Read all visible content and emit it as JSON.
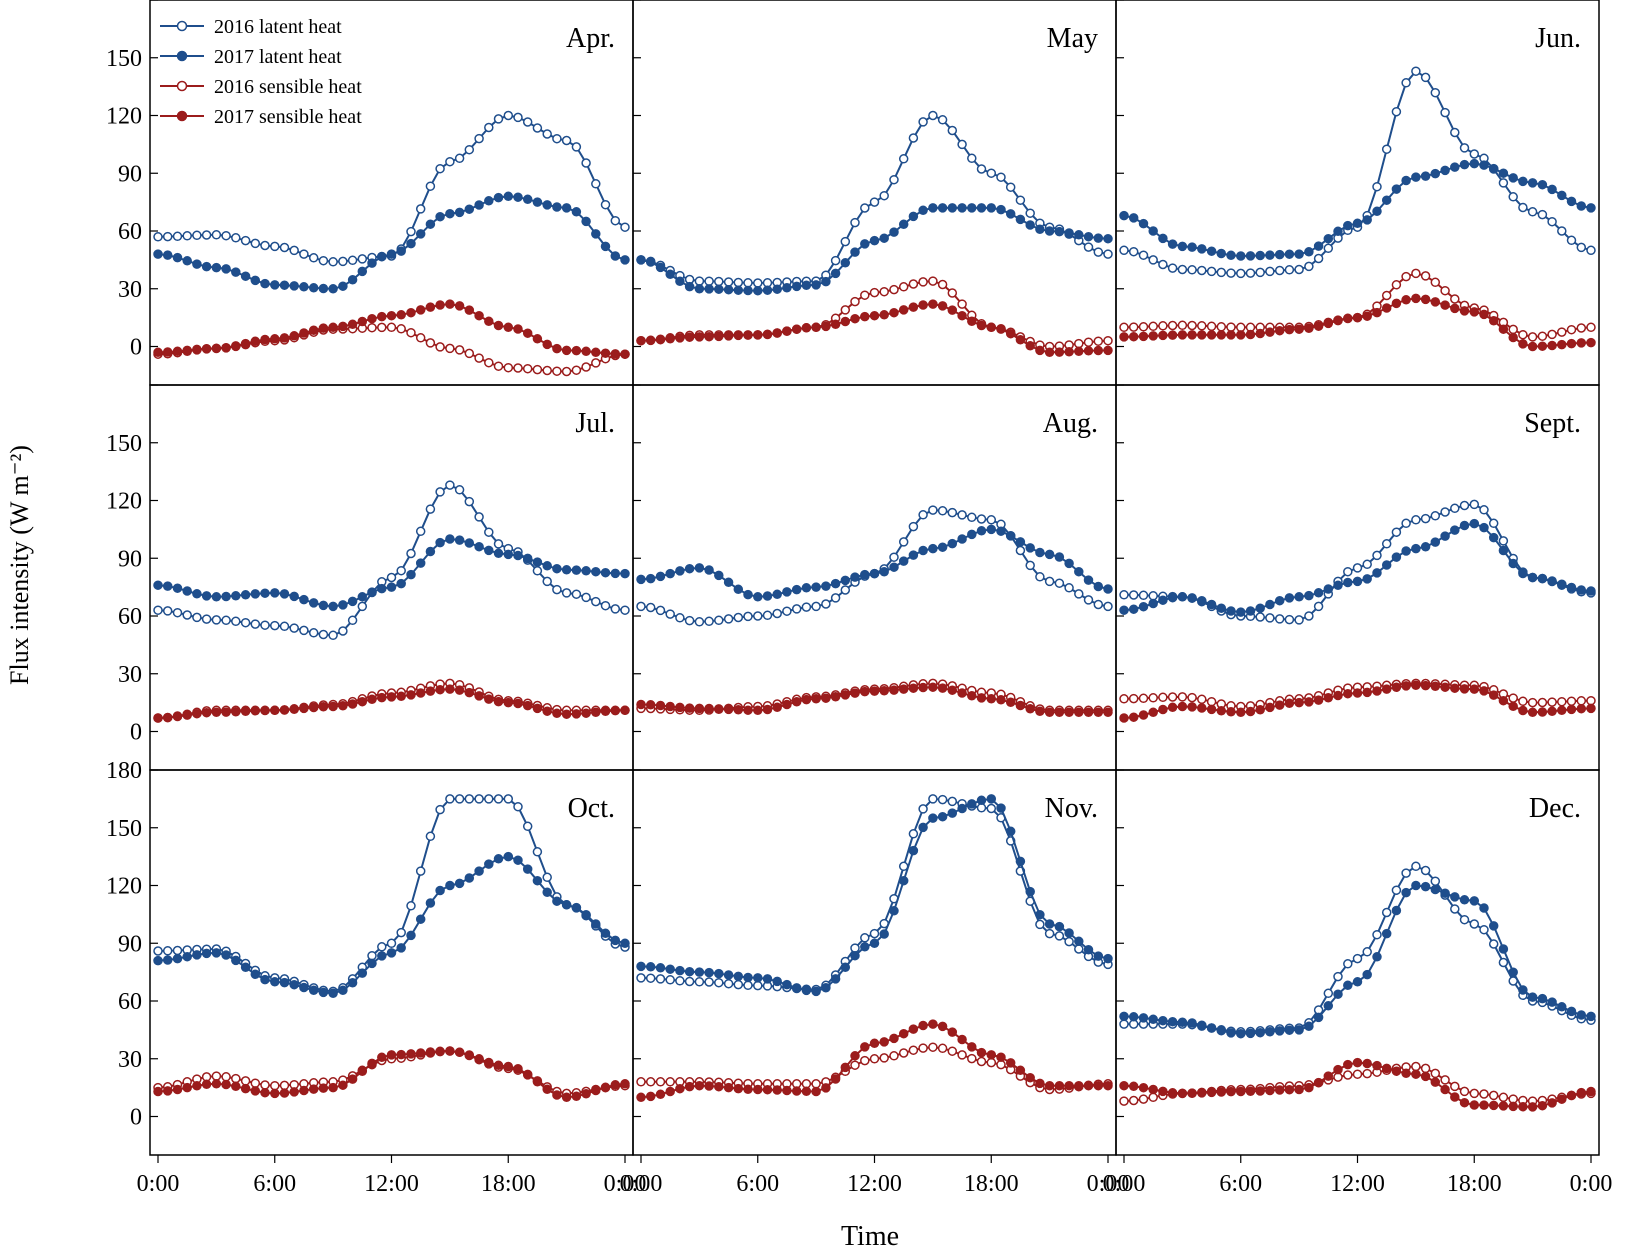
{
  "figure": {
    "ylabel": "Flux intensity (W m⁻²)",
    "xlabel": "Time",
    "x_tick_labels": [
      "0:00",
      "6:00",
      "12:00",
      "18:00",
      "0:00"
    ],
    "colors": {
      "latent": "#1f4e8c",
      "sensible": "#9b1c1c",
      "axis": "#000000"
    }
  },
  "legend": {
    "items": [
      {
        "label": "2016 latent heat",
        "kind": "latent",
        "year": "2016",
        "marker": "open"
      },
      {
        "label": "2017 latent heat",
        "kind": "latent",
        "year": "2017",
        "marker": "filled"
      },
      {
        "label": "2016 sensible heat",
        "kind": "sensible",
        "year": "2016",
        "marker": "open"
      },
      {
        "label": "2017 sensible heat",
        "kind": "sensible",
        "year": "2017",
        "marker": "filled"
      }
    ]
  },
  "chart_data": [
    {
      "type": "line",
      "month": "Apr.",
      "x_unit": "hours",
      "x": [
        0,
        3,
        6,
        9,
        12,
        15,
        18,
        21,
        24
      ],
      "xlim": [
        0,
        24
      ],
      "ylim": [
        -20,
        180
      ],
      "ytick_labels": [
        "0",
        "30",
        "60",
        "90",
        "120",
        "150"
      ],
      "series": [
        {
          "name": "2016 latent heat",
          "values": [
            57,
            58,
            52,
            44,
            47,
            96,
            120,
            107,
            62
          ]
        },
        {
          "name": "2017 latent heat",
          "values": [
            48,
            41,
            32,
            30,
            48,
            69,
            78,
            72,
            45
          ]
        },
        {
          "name": "2016 sensible heat",
          "values": [
            -4,
            -1,
            3,
            9,
            10,
            -1,
            -11,
            -13,
            -4
          ]
        },
        {
          "name": "2017 sensible heat",
          "values": [
            -3,
            -1,
            4,
            10,
            16,
            22,
            10,
            -2,
            -4
          ]
        }
      ]
    },
    {
      "type": "line",
      "month": "May",
      "x_unit": "hours",
      "x": [
        0,
        3,
        6,
        9,
        12,
        15,
        18,
        21,
        24
      ],
      "xlim": [
        0,
        24
      ],
      "ylim": [
        -20,
        180
      ],
      "ytick_labels": [],
      "series": [
        {
          "name": "2016 latent heat",
          "values": [
            45,
            34,
            33,
            34,
            75,
            120,
            90,
            62,
            48
          ]
        },
        {
          "name": "2017 latent heat",
          "values": [
            45,
            30,
            29,
            32,
            55,
            72,
            72,
            60,
            56
          ]
        },
        {
          "name": "2016 sensible heat",
          "values": [
            3,
            6,
            6,
            10,
            28,
            34,
            10,
            0,
            3
          ]
        },
        {
          "name": "2017 sensible heat",
          "values": [
            3,
            5,
            6,
            10,
            16,
            22,
            10,
            -3,
            -2
          ]
        }
      ]
    },
    {
      "type": "line",
      "month": "Jun.",
      "x_unit": "hours",
      "x": [
        0,
        3,
        6,
        9,
        12,
        15,
        18,
        21,
        24
      ],
      "xlim": [
        0,
        24
      ],
      "ylim": [
        -20,
        180
      ],
      "ytick_labels": [],
      "series": [
        {
          "name": "2016 latent heat",
          "values": [
            50,
            40,
            38,
            40,
            62,
            143,
            100,
            70,
            50
          ]
        },
        {
          "name": "2017 latent heat",
          "values": [
            68,
            52,
            47,
            48,
            64,
            88,
            95,
            85,
            72
          ]
        },
        {
          "name": "2016 sensible heat",
          "values": [
            10,
            11,
            10,
            10,
            15,
            38,
            20,
            5,
            10
          ]
        },
        {
          "name": "2017 sensible heat",
          "values": [
            5,
            6,
            6,
            9,
            15,
            25,
            18,
            0,
            2
          ]
        }
      ]
    },
    {
      "type": "line",
      "month": "Jul.",
      "x_unit": "hours",
      "x": [
        0,
        3,
        6,
        9,
        12,
        15,
        18,
        21,
        24
      ],
      "xlim": [
        0,
        24
      ],
      "ylim": [
        -20,
        180
      ],
      "ytick_labels": [
        "0",
        "30",
        "60",
        "90",
        "120",
        "150"
      ],
      "series": [
        {
          "name": "2016 latent heat",
          "values": [
            63,
            58,
            55,
            50,
            80,
            128,
            95,
            72,
            63
          ]
        },
        {
          "name": "2017 latent heat",
          "values": [
            76,
            70,
            72,
            65,
            75,
            100,
            92,
            84,
            82
          ]
        },
        {
          "name": "2016 sensible heat",
          "values": [
            7,
            11,
            11,
            14,
            20,
            25,
            16,
            11,
            11
          ]
        },
        {
          "name": "2017 sensible heat",
          "values": [
            7,
            10,
            11,
            13,
            18,
            22,
            15,
            9,
            11
          ]
        }
      ]
    },
    {
      "type": "line",
      "month": "Aug.",
      "x_unit": "hours",
      "x": [
        0,
        3,
        6,
        9,
        12,
        15,
        18,
        21,
        24
      ],
      "xlim": [
        0,
        24
      ],
      "ylim": [
        -20,
        180
      ],
      "ytick_labels": [],
      "series": [
        {
          "name": "2016 latent heat",
          "values": [
            65,
            57,
            60,
            65,
            82,
            115,
            110,
            78,
            65
          ]
        },
        {
          "name": "2017 latent heat",
          "values": [
            79,
            85,
            70,
            75,
            82,
            95,
            105,
            92,
            74
          ]
        },
        {
          "name": "2016 sensible heat",
          "values": [
            12,
            11,
            13,
            18,
            22,
            25,
            20,
            11,
            11
          ]
        },
        {
          "name": "2017 sensible heat",
          "values": [
            14,
            12,
            11,
            17,
            21,
            23,
            17,
            10,
            10
          ]
        }
      ]
    },
    {
      "type": "line",
      "month": "Sept.",
      "x_unit": "hours",
      "x": [
        0,
        3,
        6,
        9,
        12,
        15,
        18,
        21,
        24
      ],
      "xlim": [
        0,
        24
      ],
      "ylim": [
        -20,
        180
      ],
      "ytick_labels": [],
      "series": [
        {
          "name": "2016 latent heat",
          "values": [
            71,
            70,
            60,
            58,
            85,
            110,
            118,
            80,
            72
          ]
        },
        {
          "name": "2017 latent heat",
          "values": [
            63,
            70,
            62,
            70,
            78,
            95,
            108,
            80,
            73
          ]
        },
        {
          "name": "2016 sensible heat",
          "values": [
            17,
            18,
            13,
            17,
            23,
            25,
            24,
            15,
            16
          ]
        },
        {
          "name": "2017 sensible heat",
          "values": [
            7,
            13,
            10,
            15,
            20,
            24,
            22,
            10,
            12
          ]
        }
      ]
    },
    {
      "type": "line",
      "month": "Oct.",
      "x_unit": "hours",
      "x": [
        0,
        3,
        6,
        9,
        12,
        15,
        18,
        21,
        24
      ],
      "xlim": [
        0,
        24
      ],
      "ylim": [
        -20,
        180
      ],
      "ytick_labels": [
        "0",
        "30",
        "60",
        "90",
        "120",
        "150",
        "180"
      ],
      "series": [
        {
          "name": "2016 latent heat",
          "values": [
            86,
            87,
            72,
            65,
            90,
            165,
            165,
            110,
            88
          ]
        },
        {
          "name": "2017 latent heat",
          "values": [
            81,
            85,
            70,
            64,
            85,
            120,
            135,
            110,
            90
          ]
        },
        {
          "name": "2016 sensible heat",
          "values": [
            15,
            21,
            16,
            18,
            30,
            34,
            25,
            12,
            16
          ]
        },
        {
          "name": "2017 sensible heat",
          "values": [
            13,
            17,
            12,
            15,
            32,
            34,
            26,
            10,
            17
          ]
        }
      ]
    },
    {
      "type": "line",
      "month": "Nov.",
      "x_unit": "hours",
      "x": [
        0,
        3,
        6,
        9,
        12,
        15,
        18,
        21,
        24
      ],
      "xlim": [
        0,
        24
      ],
      "ylim": [
        -20,
        180
      ],
      "ytick_labels": [],
      "series": [
        {
          "name": "2016 latent heat",
          "values": [
            72,
            70,
            68,
            66,
            95,
            165,
            160,
            95,
            79
          ]
        },
        {
          "name": "2017 latent heat",
          "values": [
            78,
            75,
            72,
            65,
            90,
            155,
            165,
            100,
            82
          ]
        },
        {
          "name": "2016 sensible heat",
          "values": [
            18,
            18,
            17,
            17,
            30,
            36,
            28,
            14,
            17
          ]
        },
        {
          "name": "2017 sensible heat",
          "values": [
            10,
            16,
            14,
            13,
            38,
            48,
            32,
            16,
            16
          ]
        }
      ]
    },
    {
      "type": "line",
      "month": "Dec.",
      "x_unit": "hours",
      "x": [
        0,
        3,
        6,
        9,
        12,
        15,
        18,
        21,
        24
      ],
      "xlim": [
        0,
        24
      ],
      "ylim": [
        -20,
        180
      ],
      "ytick_labels": [],
      "series": [
        {
          "name": "2016 latent heat",
          "values": [
            48,
            48,
            44,
            46,
            82,
            130,
            100,
            60,
            50
          ]
        },
        {
          "name": "2017 latent heat",
          "values": [
            52,
            49,
            43,
            45,
            70,
            120,
            112,
            62,
            52
          ]
        },
        {
          "name": "2016 sensible heat",
          "values": [
            8,
            12,
            14,
            16,
            22,
            26,
            12,
            8,
            12
          ]
        },
        {
          "name": "2017 sensible heat",
          "values": [
            16,
            12,
            13,
            14,
            28,
            22,
            6,
            5,
            13
          ]
        }
      ]
    }
  ]
}
